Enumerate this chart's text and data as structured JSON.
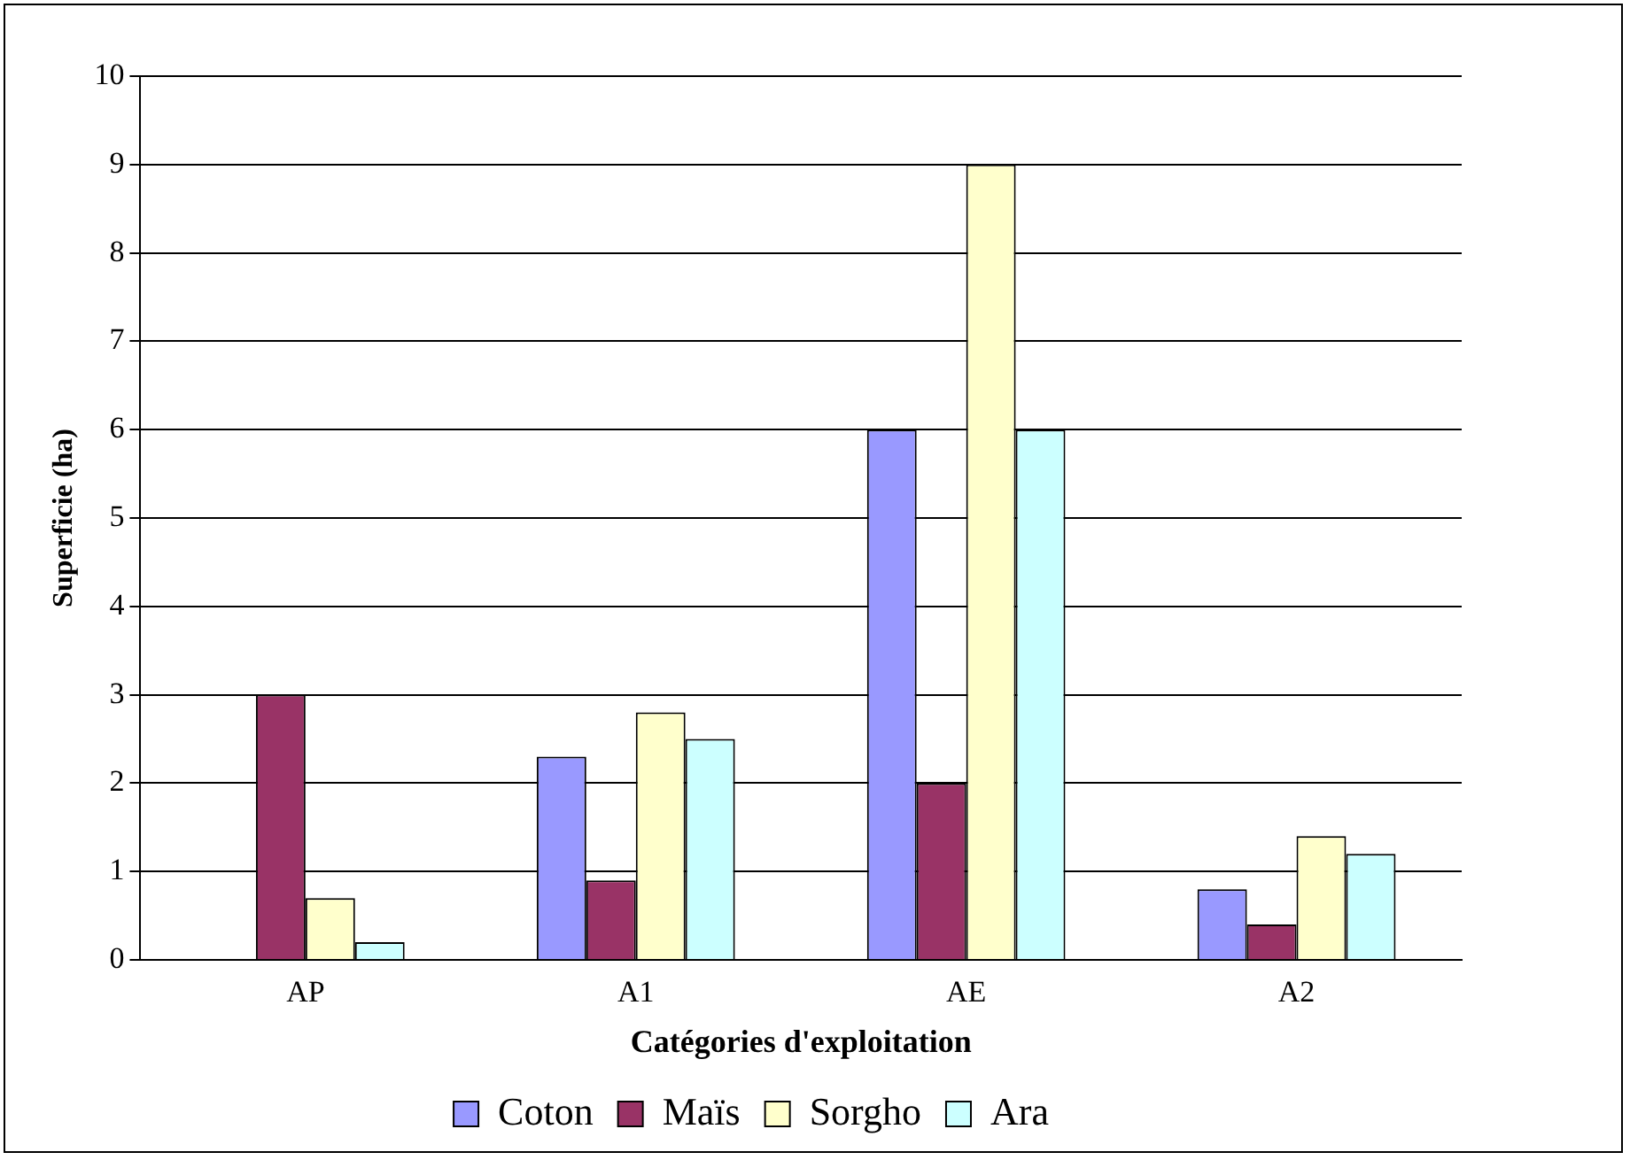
{
  "chart_data": {
    "type": "bar",
    "xlabel": "Catégories d'exploitation",
    "ylabel": "Superficie (ha)",
    "categories": [
      "AP",
      "A1",
      "AE",
      "A2"
    ],
    "series": [
      {
        "name": "Coton",
        "color": "#9999ff",
        "values": [
          0,
          2.3,
          6,
          0.8
        ]
      },
      {
        "name": "Maïs",
        "color": "#993366",
        "values": [
          3,
          0.9,
          2,
          0.4
        ]
      },
      {
        "name": "Sorgho",
        "color": "#ffffcc",
        "values": [
          0.7,
          2.8,
          9,
          1.4
        ]
      },
      {
        "name": "Ara",
        "color": "#ccffff",
        "values": [
          0.2,
          2.5,
          6,
          1.2
        ]
      }
    ],
    "ylim": [
      0,
      10
    ],
    "yticks": [
      0,
      1,
      2,
      3,
      4,
      5,
      6,
      7,
      8,
      9,
      10
    ],
    "grid": "y",
    "legend": "bottom"
  }
}
